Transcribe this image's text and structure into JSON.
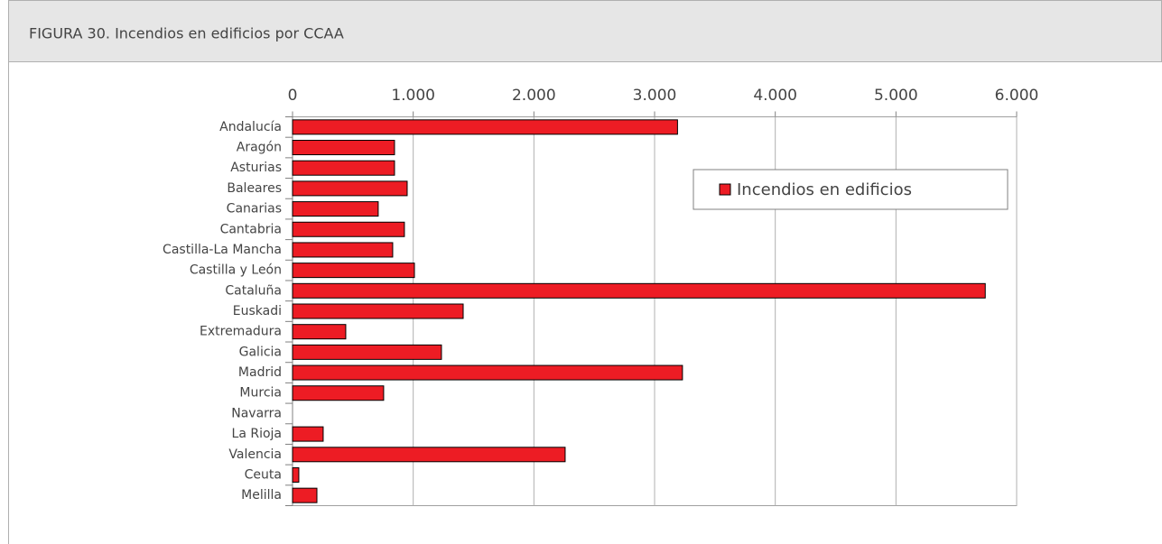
{
  "chart_data": {
    "type": "bar",
    "orientation": "horizontal",
    "title": "FIGURA 30. Incendios en edificios por CCAA",
    "categories": [
      "Andalucía",
      "Aragón",
      "Asturias",
      "Baleares",
      "Canarias",
      "Cantabria",
      "Castilla-La Mancha",
      "Castilla y León",
      "Cataluña",
      "Euskadi",
      "Extremadura",
      "Galicia",
      "Madrid",
      "Murcia",
      "Navarra",
      "La Rioja",
      "Valencia",
      "Ceuta",
      "Melilla"
    ],
    "series": [
      {
        "name": "Incendios en edificios",
        "color": "#ed1c24",
        "values": [
          3190,
          845,
          845,
          950,
          710,
          927,
          830,
          1010,
          5740,
          1414,
          441,
          1234,
          3231,
          755,
          0,
          254,
          2259,
          52,
          202
        ]
      }
    ],
    "xlim": [
      0,
      6000
    ],
    "xticks": [
      0,
      {
        "value": 1000,
        "label": "1.000"
      },
      {
        "value": 2000,
        "label": "2.000"
      },
      {
        "value": 3000,
        "label": "3.000"
      },
      {
        "value": 4000,
        "label": "4.000"
      },
      {
        "value": 5000,
        "label": "5.000"
      },
      {
        "value": 6000,
        "label": "6.000"
      }
    ],
    "grid": true,
    "legend": "upper right"
  }
}
